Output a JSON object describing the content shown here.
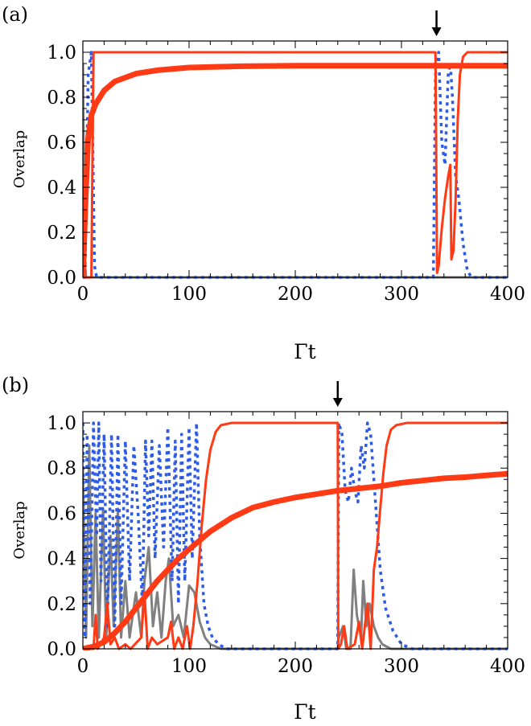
{
  "chart_data": [
    {
      "type": "line",
      "panel_label": "(a)",
      "xlabel": "Γt",
      "ylabel": "Overlap",
      "xlim": [
        0,
        400
      ],
      "ylim": [
        0,
        1.05
      ],
      "x_ticks": [
        0,
        100,
        200,
        300,
        400
      ],
      "y_ticks": [
        0.0,
        0.2,
        0.4,
        0.6,
        0.8,
        1.0
      ],
      "x_tick_labels": [
        "0",
        "100",
        "200",
        "300",
        "400"
      ],
      "y_tick_labels": [
        "0.0",
        "0.2",
        "0.4",
        "0.6",
        "0.8",
        "1.0"
      ],
      "arrow_x": 333,
      "series": [
        {
          "name": "gray",
          "color": "#808080",
          "width": 3,
          "dash": "",
          "points": [
            [
              0,
              0.95
            ],
            [
              1,
              0.5
            ],
            [
              2,
              0.05
            ],
            [
              3,
              0.0
            ],
            [
              400,
              0.0
            ]
          ]
        },
        {
          "name": "blue dotted",
          "color": "#2e5be6",
          "width": 3.5,
          "dash": "4,5",
          "points": [
            [
              0,
              0.0
            ],
            [
              2,
              0.0
            ],
            [
              5,
              0.9
            ],
            [
              8,
              1.0
            ],
            [
              11,
              0.05
            ],
            [
              13,
              0.0
            ],
            [
              330,
              0.0
            ],
            [
              332,
              0.9
            ],
            [
              335,
              1.0
            ],
            [
              338,
              0.6
            ],
            [
              341,
              0.5
            ],
            [
              344,
              0.9
            ],
            [
              346,
              0.95
            ],
            [
              348,
              0.8
            ],
            [
              351,
              0.45
            ],
            [
              354,
              0.35
            ],
            [
              358,
              0.15
            ],
            [
              362,
              0.03
            ],
            [
              366,
              0.0
            ],
            [
              400,
              0.0
            ]
          ]
        },
        {
          "name": "red thin",
          "color": "#ff3a14",
          "width": 3,
          "dash": "",
          "points": [
            [
              0,
              0.0
            ],
            [
              8,
              0.0
            ],
            [
              9,
              0.5
            ],
            [
              10,
              1.0
            ],
            [
              332,
              1.0
            ],
            [
              333.5,
              0.02
            ],
            [
              335,
              0.05
            ],
            [
              338,
              0.22
            ],
            [
              341,
              0.35
            ],
            [
              344,
              0.45
            ],
            [
              346,
              0.5
            ],
            [
              347,
              0.08
            ],
            [
              349,
              0.12
            ],
            [
              351,
              0.35
            ],
            [
              353,
              0.7
            ],
            [
              355,
              0.9
            ],
            [
              358,
              0.98
            ],
            [
              362,
              1.0
            ],
            [
              400,
              1.0
            ]
          ]
        },
        {
          "name": "red thick",
          "color": "#ff3a14",
          "width": 7,
          "dash": "",
          "points": [
            [
              0,
              0.0
            ],
            [
              3,
              0.4
            ],
            [
              5,
              0.62
            ],
            [
              8,
              0.72
            ],
            [
              12,
              0.77
            ],
            [
              20,
              0.83
            ],
            [
              30,
              0.87
            ],
            [
              50,
              0.905
            ],
            [
              70,
              0.92
            ],
            [
              100,
              0.932
            ],
            [
              150,
              0.938
            ],
            [
              200,
              0.94
            ],
            [
              400,
              0.94
            ]
          ]
        }
      ]
    },
    {
      "type": "line",
      "panel_label": "(b)",
      "xlabel": "Γt",
      "ylabel": "Overlap",
      "xlim": [
        0,
        400
      ],
      "ylim": [
        0,
        1.05
      ],
      "x_ticks": [
        0,
        100,
        200,
        300,
        400
      ],
      "y_ticks": [
        0.0,
        0.2,
        0.4,
        0.6,
        0.8,
        1.0
      ],
      "x_tick_labels": [
        "0",
        "100",
        "200",
        "300",
        "400"
      ],
      "y_tick_labels": [
        "0.0",
        "0.2",
        "0.4",
        "0.6",
        "0.8",
        "1.0"
      ],
      "arrow_x": 240,
      "series": [
        {
          "name": "gray",
          "color": "#808080",
          "width": 3,
          "dash": "",
          "points": [
            [
              0,
              0.8
            ],
            [
              3,
              0.05
            ],
            [
              6,
              0.9
            ],
            [
              9,
              0.1
            ],
            [
              12,
              0.6
            ],
            [
              15,
              0.05
            ],
            [
              19,
              0.62
            ],
            [
              22,
              0.05
            ],
            [
              26,
              0.5
            ],
            [
              29,
              0.1
            ],
            [
              33,
              0.62
            ],
            [
              36,
              0.05
            ],
            [
              40,
              0.3
            ],
            [
              44,
              0.05
            ],
            [
              50,
              0.25
            ],
            [
              55,
              0.05
            ],
            [
              58,
              0.3
            ],
            [
              62,
              0.45
            ],
            [
              66,
              0.1
            ],
            [
              70,
              0.25
            ],
            [
              74,
              0.05
            ],
            [
              78,
              0.3
            ],
            [
              81,
              0.4
            ],
            [
              85,
              0.1
            ],
            [
              90,
              0.15
            ],
            [
              95,
              0.05
            ],
            [
              100,
              0.28
            ],
            [
              105,
              0.25
            ],
            [
              110,
              0.12
            ],
            [
              115,
              0.05
            ],
            [
              120,
              0.02
            ],
            [
              130,
              0.0
            ],
            [
              240,
              0.0
            ],
            [
              241,
              0.05
            ],
            [
              245,
              0.1
            ],
            [
              248,
              0.0
            ],
            [
              252,
              0.0
            ],
            [
              255,
              0.35
            ],
            [
              258,
              0.15
            ],
            [
              262,
              0.05
            ],
            [
              264,
              0.3
            ],
            [
              267,
              0.1
            ],
            [
              270,
              0.2
            ],
            [
              274,
              0.1
            ],
            [
              278,
              0.05
            ],
            [
              282,
              0.02
            ],
            [
              290,
              0.0
            ],
            [
              400,
              0.0
            ]
          ]
        },
        {
          "name": "blue dotted",
          "color": "#2e5be6",
          "width": 3.5,
          "dash": "4,5",
          "points": [
            [
              0,
              1.0
            ],
            [
              2,
              0.05
            ],
            [
              4,
              0.95
            ],
            [
              7,
              0.2
            ],
            [
              10,
              1.0
            ],
            [
              13,
              0.5
            ],
            [
              15,
              1.0
            ],
            [
              17,
              0.3
            ],
            [
              20,
              0.95
            ],
            [
              23,
              0.1
            ],
            [
              27,
              0.95
            ],
            [
              30,
              0.1
            ],
            [
              33,
              0.95
            ],
            [
              36,
              0.2
            ],
            [
              40,
              0.92
            ],
            [
              44,
              0.3
            ],
            [
              48,
              0.9
            ],
            [
              52,
              0.6
            ],
            [
              56,
              0.2
            ],
            [
              59,
              0.92
            ],
            [
              62,
              0.5
            ],
            [
              65,
              0.92
            ],
            [
              68,
              0.4
            ],
            [
              72,
              0.9
            ],
            [
              76,
              0.45
            ],
            [
              80,
              0.98
            ],
            [
              84,
              0.3
            ],
            [
              87,
              0.92
            ],
            [
              90,
              0.2
            ],
            [
              93,
              0.95
            ],
            [
              96,
              0.3
            ],
            [
              100,
              0.98
            ],
            [
              103,
              0.4
            ],
            [
              107,
              1.0
            ],
            [
              110,
              0.5
            ],
            [
              114,
              0.2
            ],
            [
              118,
              0.1
            ],
            [
              122,
              0.05
            ],
            [
              128,
              0.02
            ],
            [
              135,
              0.0
            ],
            [
              240,
              0.0
            ],
            [
              241,
              1.0
            ],
            [
              244,
              0.95
            ],
            [
              247,
              0.7
            ],
            [
              250,
              0.65
            ],
            [
              253,
              0.8
            ],
            [
              256,
              0.7
            ],
            [
              259,
              0.65
            ],
            [
              262,
              0.9
            ],
            [
              265,
              0.8
            ],
            [
              268,
              1.0
            ],
            [
              271,
              0.95
            ],
            [
              274,
              0.75
            ],
            [
              277,
              0.55
            ],
            [
              280,
              0.35
            ],
            [
              285,
              0.18
            ],
            [
              292,
              0.08
            ],
            [
              300,
              0.02
            ],
            [
              310,
              0.0
            ],
            [
              400,
              0.0
            ]
          ]
        },
        {
          "name": "red thin",
          "color": "#ff3a14",
          "width": 3,
          "dash": "",
          "points": [
            [
              0,
              0.0
            ],
            [
              10,
              0.0
            ],
            [
              12,
              0.15
            ],
            [
              14,
              0.0
            ],
            [
              20,
              0.05
            ],
            [
              23,
              0.2
            ],
            [
              26,
              0.02
            ],
            [
              30,
              0.05
            ],
            [
              34,
              0.0
            ],
            [
              40,
              0.02
            ],
            [
              45,
              0.0
            ],
            [
              55,
              0.05
            ],
            [
              58,
              0.25
            ],
            [
              61,
              0.0
            ],
            [
              65,
              0.05
            ],
            [
              70,
              0.02
            ],
            [
              80,
              0.05
            ],
            [
              83,
              0.12
            ],
            [
              86,
              0.0
            ],
            [
              90,
              0.05
            ],
            [
              94,
              0.0
            ],
            [
              98,
              0.1
            ],
            [
              101,
              0.0
            ],
            [
              104,
              0.1
            ],
            [
              108,
              0.3
            ],
            [
              112,
              0.55
            ],
            [
              116,
              0.75
            ],
            [
              120,
              0.88
            ],
            [
              125,
              0.96
            ],
            [
              130,
              0.99
            ],
            [
              140,
              1.0
            ],
            [
              240,
              1.0
            ],
            [
              240.5,
              0.0
            ],
            [
              243,
              0.02
            ],
            [
              246,
              0.1
            ],
            [
              249,
              0.0
            ],
            [
              256,
              0.02
            ],
            [
              260,
              0.12
            ],
            [
              263,
              0.0
            ],
            [
              268,
              0.2
            ],
            [
              271,
              0.0
            ],
            [
              274,
              0.35
            ],
            [
              277,
              0.45
            ],
            [
              280,
              0.62
            ],
            [
              283,
              0.78
            ],
            [
              286,
              0.9
            ],
            [
              290,
              0.97
            ],
            [
              295,
              0.99
            ],
            [
              305,
              1.0
            ],
            [
              400,
              1.0
            ]
          ]
        },
        {
          "name": "red thick",
          "color": "#ff3a14",
          "width": 7,
          "dash": "",
          "points": [
            [
              0,
              0.0
            ],
            [
              10,
              0.01
            ],
            [
              20,
              0.03
            ],
            [
              30,
              0.07
            ],
            [
              40,
              0.12
            ],
            [
              50,
              0.18
            ],
            [
              60,
              0.24
            ],
            [
              70,
              0.3
            ],
            [
              80,
              0.35
            ],
            [
              90,
              0.4
            ],
            [
              100,
              0.44
            ],
            [
              110,
              0.48
            ],
            [
              120,
              0.52
            ],
            [
              140,
              0.58
            ],
            [
              160,
              0.625
            ],
            [
              180,
              0.65
            ],
            [
              200,
              0.67
            ],
            [
              220,
              0.685
            ],
            [
              240,
              0.7
            ],
            [
              260,
              0.71
            ],
            [
              280,
              0.72
            ],
            [
              300,
              0.735
            ],
            [
              320,
              0.745
            ],
            [
              340,
              0.755
            ],
            [
              360,
              0.76
            ],
            [
              380,
              0.768
            ],
            [
              400,
              0.775
            ]
          ]
        }
      ]
    }
  ]
}
